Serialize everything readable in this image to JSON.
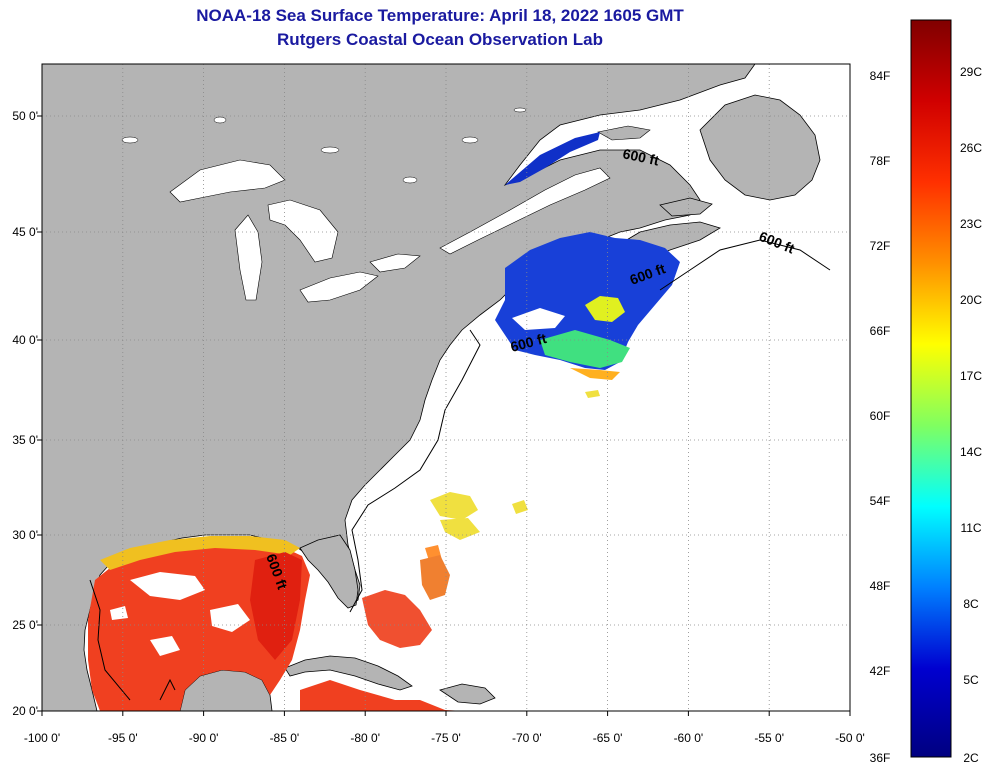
{
  "title": {
    "line1": "NOAA-18 Sea Surface Temperature:  April 18, 2022 1605 GMT",
    "line2": "Rutgers Coastal Ocean Observation Lab"
  },
  "map": {
    "lon_ticks": [
      "-100 0'",
      "-95 0'",
      "-90 0'",
      "-85 0'",
      "-80 0'",
      "-75 0'",
      "-70 0'",
      "-65 0'",
      "-60 0'",
      "-55 0'",
      "-50 0'"
    ],
    "lat_ticks": [
      "50 0'",
      "45 0'",
      "40 0'",
      "35 0'",
      "30 0'",
      "25 0'",
      "20 0'"
    ],
    "contour_label": "600 ft",
    "colors": {
      "land": "#b4b4b4",
      "ocean": "#ffffff",
      "grid": "#888888"
    }
  },
  "colorbar": {
    "fahrenheit": [
      "84F",
      "78F",
      "72F",
      "66F",
      "60F",
      "54F",
      "48F",
      "42F",
      "36F"
    ],
    "celsius": [
      "29C",
      "26C",
      "23C",
      "20C",
      "17C",
      "14C",
      "11C",
      "8C",
      "5C",
      "2C"
    ],
    "gradient": [
      "#800000",
      "#d00000",
      "#ff3000",
      "#ff9000",
      "#ffff00",
      "#80ff60",
      "#00ffff",
      "#0080ff",
      "#0000d0",
      "#000080"
    ]
  }
}
